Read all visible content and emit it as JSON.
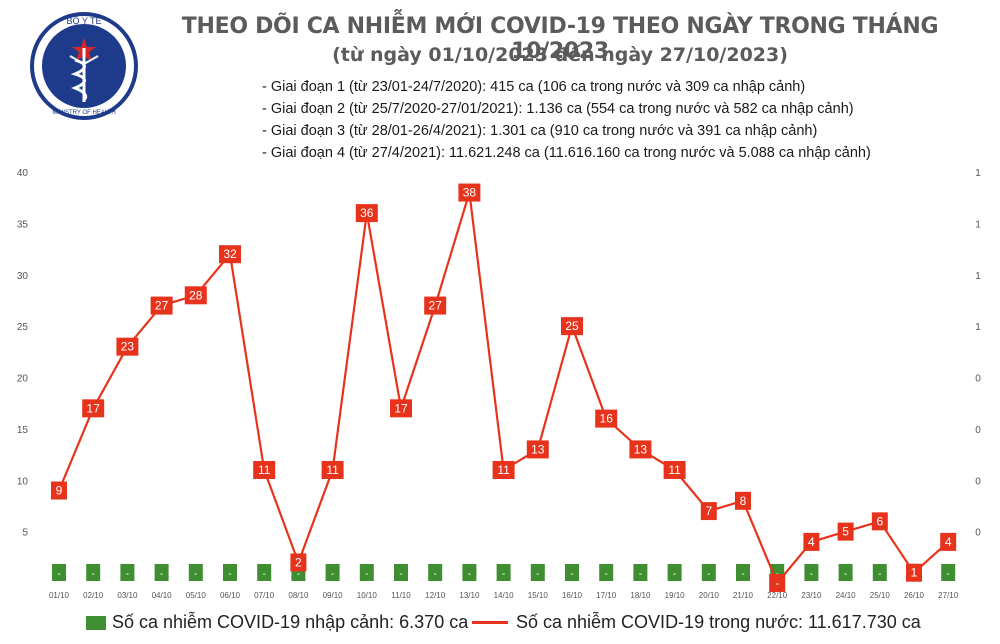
{
  "logo": {
    "top_text": "BỘ Y TẾ",
    "bottom_text": "MINISTRY OF HEALTH"
  },
  "title": "THEO DÕI CA NHIỄM MỚI COVID-19 THEO NGÀY TRONG THÁNG 10/2023",
  "subtitle": "(từ ngày 01/10/2023 đến ngày 27/10/2023)",
  "phases": [
    "- Giai đoạn 1 (từ 23/01-24/7/2020): 415 ca (106 ca trong nước và 309 ca nhập cảnh)",
    "- Giai đoạn 2 (từ 25/7/2020-27/01/2021): 1.136 ca (554 ca trong nước và 582 ca nhập cảnh)",
    "- Giai đoạn 3 (từ 28/01-26/4/2021): 1.301 ca (910 ca trong nước và 391 ca nhập cảnh)",
    "- Giai đoạn 4 (từ 27/4/2021): 11.621.248 ca (11.616.160 ca trong nước và 5.088 ca nhập cảnh)"
  ],
  "colors": {
    "line": "#e8331c",
    "bar": "#3f8f32",
    "axis_text": "#555555"
  },
  "chart_data": {
    "type": "line",
    "categories": [
      "01/10",
      "02/10",
      "03/10",
      "04/10",
      "05/10",
      "06/10",
      "07/10",
      "08/10",
      "09/10",
      "10/10",
      "11/10",
      "12/10",
      "13/10",
      "14/10",
      "15/10",
      "16/10",
      "17/10",
      "18/10",
      "19/10",
      "20/10",
      "21/10",
      "22/10",
      "23/10",
      "24/10",
      "25/10",
      "26/10",
      "27/10"
    ],
    "series": [
      {
        "name": "Số ca nhiễm COVID-19 trong nước: 11.617.730 ca",
        "type": "line",
        "values": [
          9,
          17,
          23,
          27,
          28,
          32,
          11,
          2,
          11,
          36,
          17,
          27,
          38,
          11,
          13,
          25,
          16,
          13,
          11,
          7,
          8,
          0,
          4,
          5,
          6,
          1,
          4
        ],
        "labels": [
          "9",
          "17",
          "23",
          "27",
          "28",
          "32",
          "11",
          "2",
          "11",
          "36",
          "17",
          "27",
          "38",
          "11",
          "13",
          "25",
          "16",
          "13",
          "11",
          "7",
          "8",
          "-",
          "4",
          "5",
          "6",
          "1",
          "4"
        ]
      },
      {
        "name": "Số ca nhiễm COVID-19 nhập cảnh: 6.370 ca",
        "type": "bar",
        "values": [
          0,
          0,
          0,
          0,
          0,
          0,
          0,
          0,
          0,
          0,
          0,
          0,
          0,
          0,
          0,
          0,
          0,
          0,
          0,
          0,
          0,
          0,
          0,
          0,
          0,
          0,
          0
        ],
        "labels": [
          "-",
          "-",
          "-",
          "-",
          "-",
          "-",
          "-",
          "-",
          "-",
          "-",
          "-",
          "-",
          "-",
          "-",
          "-",
          "-",
          "-",
          "-",
          "-",
          "-",
          "-",
          "-",
          "-",
          "-",
          "-",
          "-",
          "-"
        ]
      }
    ],
    "ylim": [
      0,
      40
    ],
    "yticks": [
      0,
      5,
      10,
      15,
      20,
      25,
      30,
      35,
      40
    ],
    "ytick_labels": [
      "",
      "5",
      "10",
      "15",
      "20",
      "25",
      "30",
      "35",
      "40"
    ],
    "y2_tick_labels": [
      "",
      "0",
      "0",
      "0",
      "0",
      "1",
      "1",
      "1",
      "1"
    ],
    "grid": false,
    "legend_position": "bottom"
  }
}
